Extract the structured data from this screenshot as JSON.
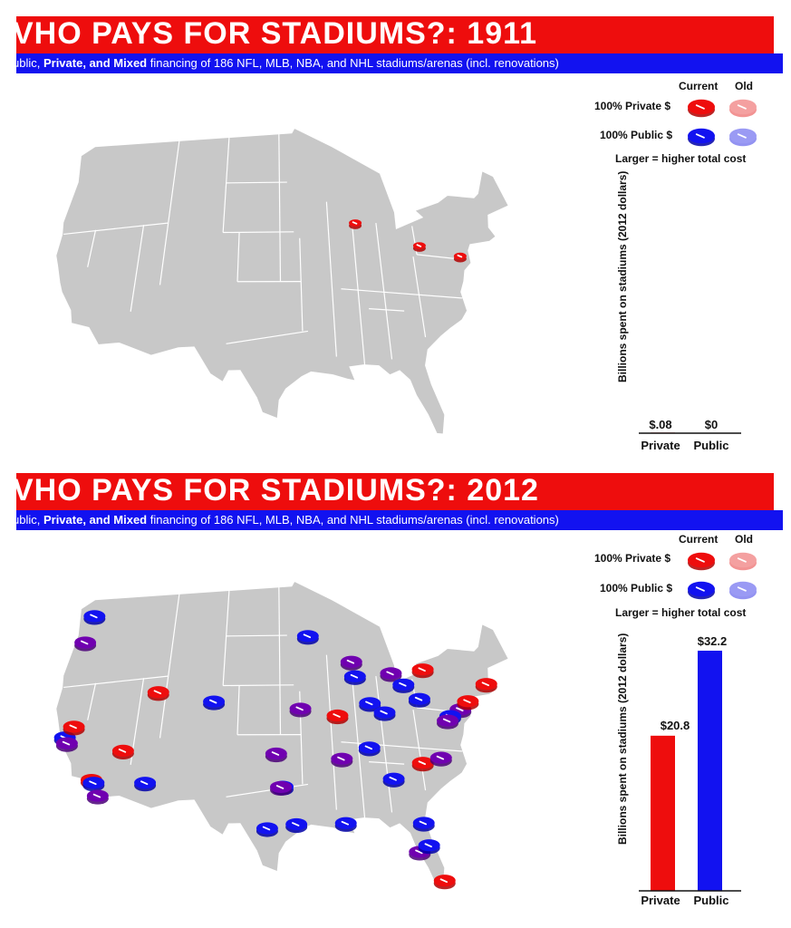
{
  "subtitle": {
    "pre": "ublic, ",
    "bold": "Private, and Mixed",
    "post": " financing of 186 NFL, MLB, NBA, and NHL stadiums/arenas (incl. renovations)"
  },
  "legend": {
    "current": "Current",
    "old": "Old",
    "private": "100% Private $",
    "public": "100% Public $",
    "size_note": "Larger = higher total cost"
  },
  "colors": {
    "private": "#ee0d0d",
    "public": "#1212f0",
    "map": "#c8c8c8",
    "title_bar": "#ee0d0d",
    "subtitle_bar": "#1212f0"
  },
  "chart_data": [
    {
      "type": "bar",
      "title": "VHO PAYS FOR STADIUMS?: 1911",
      "ylabel": "Billions spent on stadiums (2012 dollars)",
      "categories": [
        "Private",
        "Public"
      ],
      "values": [
        0.08,
        0
      ],
      "value_labels": [
        "$.08",
        "$0"
      ],
      "ylim": [
        0,
        32.2
      ],
      "map_markers": [
        {
          "lon": -87.6,
          "lat": 41.9,
          "type": "private"
        },
        {
          "lon": -80.0,
          "lat": 40.45,
          "type": "private"
        },
        {
          "lon": -75.2,
          "lat": 39.95,
          "type": "private"
        }
      ]
    },
    {
      "type": "bar",
      "title": "VHO PAYS FOR STADIUMS?: 2012",
      "ylabel": "Billions spent on stadiums (2012 dollars)",
      "categories": [
        "Private",
        "Public"
      ],
      "values": [
        20.8,
        32.2
      ],
      "value_labels": [
        "$20.8",
        "$32.2"
      ],
      "ylim": [
        0,
        32.2
      ],
      "map_markers": [
        {
          "lon": -122.4,
          "lat": 47.6,
          "type": "public"
        },
        {
          "lon": -122.7,
          "lat": 45.5,
          "type": "mixed"
        },
        {
          "lon": -122.3,
          "lat": 37.8,
          "type": "public"
        },
        {
          "lon": -121.9,
          "lat": 37.3,
          "type": "mixed"
        },
        {
          "lon": -121.5,
          "lat": 38.6,
          "type": "private"
        },
        {
          "lon": -118.2,
          "lat": 34.05,
          "type": "private"
        },
        {
          "lon": -117.9,
          "lat": 33.8,
          "type": "public"
        },
        {
          "lon": -117.2,
          "lat": 32.7,
          "type": "mixed"
        },
        {
          "lon": -115.1,
          "lat": 36.2,
          "type": "private"
        },
        {
          "lon": -112.1,
          "lat": 33.45,
          "type": "public"
        },
        {
          "lon": -111.9,
          "lat": 40.75,
          "type": "private"
        },
        {
          "lon": -104.99,
          "lat": 39.74,
          "type": "public"
        },
        {
          "lon": -97.5,
          "lat": 35.45,
          "type": "mixed"
        },
        {
          "lon": -96.8,
          "lat": 32.78,
          "type": "public"
        },
        {
          "lon": -97.0,
          "lat": 32.75,
          "type": "mixed"
        },
        {
          "lon": -95.37,
          "lat": 29.76,
          "type": "public"
        },
        {
          "lon": -98.49,
          "lat": 29.42,
          "type": "public"
        },
        {
          "lon": -94.58,
          "lat": 39.1,
          "type": "mixed"
        },
        {
          "lon": -93.27,
          "lat": 44.98,
          "type": "public"
        },
        {
          "lon": -90.2,
          "lat": 38.63,
          "type": "private"
        },
        {
          "lon": -87.9,
          "lat": 43.04,
          "type": "mixed"
        },
        {
          "lon": -87.63,
          "lat": 41.88,
          "type": "public"
        },
        {
          "lon": -86.16,
          "lat": 39.77,
          "type": "public"
        },
        {
          "lon": -84.51,
          "lat": 39.1,
          "type": "public"
        },
        {
          "lon": -83.05,
          "lat": 42.33,
          "type": "mixed"
        },
        {
          "lon": -81.69,
          "lat": 41.5,
          "type": "public"
        },
        {
          "lon": -80.0,
          "lat": 40.44,
          "type": "public"
        },
        {
          "lon": -78.88,
          "lat": 42.89,
          "type": "private"
        },
        {
          "lon": -75.16,
          "lat": 39.95,
          "type": "mixed"
        },
        {
          "lon": -74.0,
          "lat": 40.7,
          "type": "private"
        },
        {
          "lon": -71.06,
          "lat": 42.36,
          "type": "private"
        },
        {
          "lon": -76.61,
          "lat": 39.29,
          "type": "public"
        },
        {
          "lon": -77.04,
          "lat": 38.9,
          "type": "mixed"
        },
        {
          "lon": -80.84,
          "lat": 35.23,
          "type": "private"
        },
        {
          "lon": -78.64,
          "lat": 35.78,
          "type": "mixed"
        },
        {
          "lon": -86.78,
          "lat": 36.16,
          "type": "public"
        },
        {
          "lon": -84.39,
          "lat": 33.75,
          "type": "public"
        },
        {
          "lon": -90.07,
          "lat": 29.95,
          "type": "public"
        },
        {
          "lon": -90.05,
          "lat": 35.15,
          "type": "mixed"
        },
        {
          "lon": -82.46,
          "lat": 27.95,
          "type": "mixed"
        },
        {
          "lon": -81.38,
          "lat": 28.54,
          "type": "public"
        },
        {
          "lon": -80.19,
          "lat": 25.76,
          "type": "private"
        },
        {
          "lon": -81.66,
          "lat": 30.33,
          "type": "public"
        }
      ]
    }
  ]
}
